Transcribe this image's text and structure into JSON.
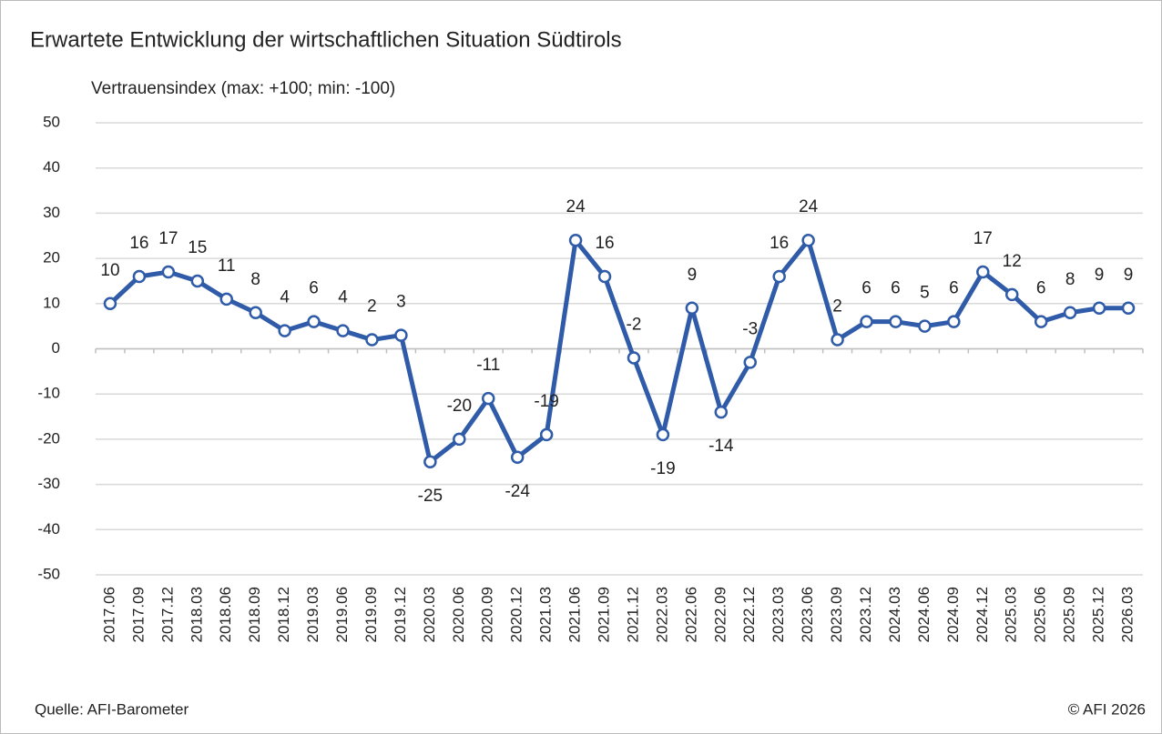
{
  "chart_data": {
    "type": "line",
    "title": "Erwartete Entwicklung der wirtschaftlichen Situation Südtirols",
    "y_axis_label": "Vertrauensindex (max: +100; min: -100)",
    "source": "Quelle: AFI-Barometer",
    "copyright": "© AFI 2026",
    "categories": [
      "2017.06",
      "2017.09",
      "2017.12",
      "2018.03",
      "2018.06",
      "2018.09",
      "2018.12",
      "2019.03",
      "2019.06",
      "2019.09",
      "2019.12",
      "2020.03",
      "2020.06",
      "2020.09",
      "2020.12",
      "2021.03",
      "2021.06",
      "2021.09",
      "2021.12",
      "2022.03",
      "2022.06",
      "2022.09",
      "2022.12",
      "2023.03",
      "2023.06",
      "2023.09",
      "2023.12",
      "2024.03",
      "2024.06",
      "2024.09",
      "2024.12",
      "2025.03",
      "2025.06",
      "2025.09",
      "2025.12",
      "2026.03"
    ],
    "series": [
      {
        "name": "Vertrauensindex",
        "color": "#2f5ba8",
        "values": [
          10,
          16,
          17,
          15,
          11,
          8,
          4,
          6,
          4,
          2,
          3,
          -25,
          -20,
          -11,
          -24,
          -19,
          24,
          16,
          -2,
          -19,
          9,
          -14,
          -3,
          16,
          24,
          2,
          6,
          6,
          5,
          6,
          17,
          12,
          6,
          8,
          9,
          9
        ]
      }
    ],
    "ylim": [
      -50,
      50
    ],
    "yticks": [
      -50,
      -40,
      -30,
      -20,
      -10,
      0,
      10,
      20,
      30,
      40,
      50
    ],
    "grid": true
  }
}
